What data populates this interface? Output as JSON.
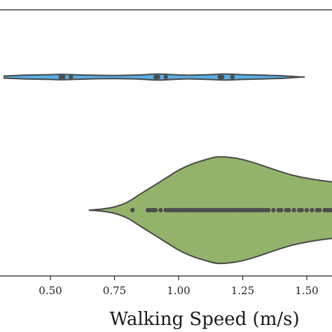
{
  "chart_data": {
    "type": "violin",
    "xlabel": "Walking Speed (m/s)",
    "ylabel": "",
    "title": "",
    "xlim": [
      0.32,
      1.65
    ],
    "xticks": [
      0.5,
      0.75,
      1.0,
      1.25,
      1.5
    ],
    "xtick_labels": [
      "0.50",
      "0.75",
      "1.00",
      "1.25",
      "1.50"
    ],
    "grid": false,
    "series": [
      {
        "color": "#5aaee8",
        "edge_color": "#4a4a4a",
        "range": [
          0.32,
          1.48
        ],
        "profile": [
          [
            0.32,
            0.02
          ],
          [
            0.4,
            0.035
          ],
          [
            0.5,
            0.045
          ],
          [
            0.55,
            0.05
          ],
          [
            0.65,
            0.035
          ],
          [
            0.75,
            0.03
          ],
          [
            0.85,
            0.04
          ],
          [
            0.92,
            0.055
          ],
          [
            1.0,
            0.04
          ],
          [
            1.05,
            0.035
          ],
          [
            1.12,
            0.045
          ],
          [
            1.18,
            0.055
          ],
          [
            1.25,
            0.045
          ],
          [
            1.33,
            0.035
          ],
          [
            1.4,
            0.025
          ],
          [
            1.48,
            0.0
          ]
        ],
        "points": [
          0.54,
          0.55,
          0.58,
          0.91,
          0.92,
          0.95,
          1.16,
          1.17,
          1.21
        ]
      },
      {
        "color": "#93b36b",
        "edge_color": "#4a4a4a",
        "range": [
          0.65,
          1.65
        ],
        "profile": [
          [
            0.65,
            0.0
          ],
          [
            0.7,
            0.02
          ],
          [
            0.75,
            0.06
          ],
          [
            0.8,
            0.15
          ],
          [
            0.85,
            0.3
          ],
          [
            0.9,
            0.45
          ],
          [
            0.95,
            0.6
          ],
          [
            1.0,
            0.75
          ],
          [
            1.05,
            0.86
          ],
          [
            1.1,
            0.94
          ],
          [
            1.15,
            1.0
          ],
          [
            1.2,
            0.99
          ],
          [
            1.25,
            0.95
          ],
          [
            1.3,
            0.88
          ],
          [
            1.35,
            0.8
          ],
          [
            1.4,
            0.72
          ],
          [
            1.45,
            0.65
          ],
          [
            1.5,
            0.6
          ],
          [
            1.55,
            0.56
          ],
          [
            1.6,
            0.53
          ],
          [
            1.65,
            0.5
          ]
        ],
        "points": [
          0.82,
          0.88,
          0.89,
          0.9,
          0.91,
          0.93,
          0.95,
          0.96,
          0.97,
          0.98,
          0.99,
          1.0,
          1.01,
          1.02,
          1.03,
          1.04,
          1.05,
          1.06,
          1.07,
          1.08,
          1.09,
          1.1,
          1.11,
          1.12,
          1.13,
          1.14,
          1.15,
          1.16,
          1.17,
          1.18,
          1.19,
          1.2,
          1.21,
          1.22,
          1.23,
          1.24,
          1.25,
          1.26,
          1.27,
          1.28,
          1.29,
          1.3,
          1.31,
          1.32,
          1.33,
          1.34,
          1.35,
          1.37,
          1.39,
          1.4,
          1.42,
          1.43,
          1.45,
          1.47,
          1.48,
          1.5,
          1.52,
          1.54,
          1.55,
          1.57,
          1.58,
          1.59,
          1.6,
          1.61,
          1.62,
          1.63,
          1.64
        ]
      }
    ]
  }
}
